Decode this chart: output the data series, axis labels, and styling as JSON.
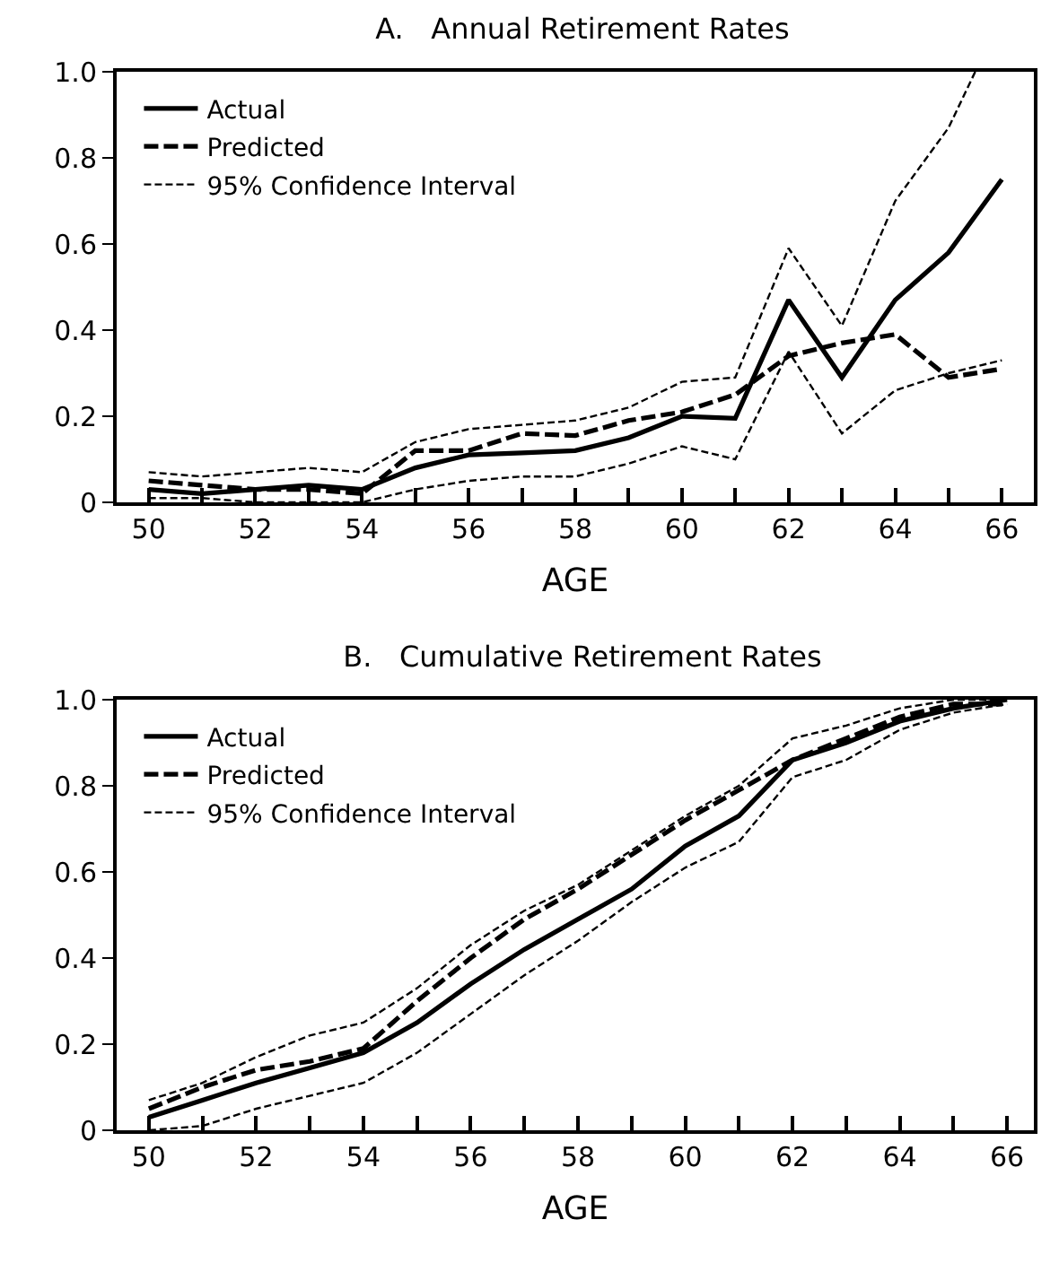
{
  "chart_data": [
    {
      "type": "line",
      "title": "A.   Annual Retirement Rates",
      "xlabel": "AGE",
      "x": [
        50,
        51,
        52,
        53,
        54,
        55,
        56,
        57,
        58,
        59,
        60,
        61,
        62,
        63,
        64,
        65,
        66
      ],
      "series": [
        {
          "name": "Actual",
          "color": "#000000",
          "line_style": "solid",
          "values": [
            0.03,
            0.02,
            0.03,
            0.04,
            0.03,
            0.08,
            0.11,
            0.115,
            0.12,
            0.15,
            0.2,
            0.195,
            0.47,
            0.29,
            0.47,
            0.58,
            0.75
          ]
        },
        {
          "name": "Predicted",
          "color": "#000000",
          "line_style": "dashed",
          "values": [
            0.05,
            0.04,
            0.03,
            0.03,
            0.02,
            0.12,
            0.12,
            0.16,
            0.155,
            0.19,
            0.21,
            0.25,
            0.34,
            0.37,
            0.39,
            0.29,
            0.31
          ]
        },
        {
          "name": "95% Confidence Interval",
          "color": "#000000",
          "line_style": "dashed",
          "x": [
            50,
            51,
            52,
            53,
            54,
            55,
            56,
            57,
            58,
            59,
            60,
            61,
            62,
            63,
            64,
            65,
            65.5
          ],
          "values": [
            0.07,
            0.06,
            0.07,
            0.08,
            0.07,
            0.14,
            0.17,
            0.18,
            0.19,
            0.22,
            0.28,
            0.29,
            0.59,
            0.41,
            0.7,
            0.87,
            1.0
          ]
        },
        {
          "color": "#000000",
          "line_style": "dashed",
          "values": [
            0.01,
            0.01,
            0.0,
            0.0,
            0.0,
            0.03,
            0.05,
            0.06,
            0.06,
            0.09,
            0.13,
            0.1,
            0.35,
            0.16,
            0.26,
            0.3,
            0.33
          ]
        }
      ],
      "xlim": [
        49.4,
        66.6
      ],
      "xticks": [
        50,
        {
          "value": 51,
          "label": null
        },
        52,
        {
          "value": 53,
          "label": null
        },
        54,
        {
          "value": 55,
          "label": null
        },
        56,
        {
          "value": 57,
          "label": null
        },
        58,
        {
          "value": 59,
          "label": null
        },
        60,
        {
          "value": 61,
          "label": null
        },
        62,
        {
          "value": 63,
          "label": null
        },
        64,
        {
          "value": 65,
          "label": null
        },
        66
      ],
      "ylim": [
        0,
        1
      ],
      "yticks": [
        0,
        0.2,
        0.4,
        0.6,
        0.8,
        {
          "value": 1,
          "label": "1.0"
        }
      ],
      "grid": false,
      "legend": "top left",
      "marker": "none"
    },
    {
      "type": "line",
      "title": "B.   Cumulative Retirement Rates",
      "xlabel": "AGE",
      "x": [
        50,
        51,
        52,
        53,
        54,
        55,
        56,
        57,
        58,
        59,
        60,
        61,
        62,
        63,
        64,
        65,
        66
      ],
      "series": [
        {
          "name": "Actual",
          "color": "#000000",
          "line_style": "solid",
          "values": [
            0.03,
            0.07,
            0.11,
            0.145,
            0.18,
            0.25,
            0.34,
            0.42,
            0.49,
            0.56,
            0.66,
            0.73,
            0.86,
            0.9,
            0.95,
            0.98,
            1.0
          ]
        },
        {
          "name": "Predicted",
          "color": "#000000",
          "line_style": "dashed",
          "values": [
            0.05,
            0.1,
            0.14,
            0.16,
            0.19,
            0.3,
            0.4,
            0.49,
            0.56,
            0.64,
            0.72,
            0.79,
            0.86,
            0.91,
            0.96,
            0.99,
            0.99
          ]
        },
        {
          "name": "95% Confidence Interval",
          "color": "#000000",
          "line_style": "dashed",
          "values": [
            0.07,
            0.11,
            0.17,
            0.22,
            0.25,
            0.33,
            0.43,
            0.51,
            0.57,
            0.65,
            0.73,
            0.8,
            0.91,
            0.94,
            0.98,
            1.0,
            1.0
          ]
        },
        {
          "color": "#000000",
          "line_style": "dashed",
          "values": [
            0.0,
            0.01,
            0.05,
            0.08,
            0.11,
            0.18,
            0.27,
            0.36,
            0.44,
            0.53,
            0.61,
            0.67,
            0.82,
            0.86,
            0.93,
            0.97,
            0.99
          ]
        }
      ],
      "xlim": [
        49.4,
        66.5
      ],
      "xticks": [
        50,
        {
          "value": 51,
          "label": null
        },
        52,
        {
          "value": 53,
          "label": null
        },
        54,
        {
          "value": 55,
          "label": null
        },
        56,
        {
          "value": 57,
          "label": null
        },
        58,
        {
          "value": 59,
          "label": null
        },
        60,
        {
          "value": 61,
          "label": null
        },
        62,
        {
          "value": 63,
          "label": null
        },
        64,
        {
          "value": 65,
          "label": null
        },
        66
      ],
      "ylim": [
        0,
        1
      ],
      "yticks": [
        0,
        0.2,
        0.4,
        0.6,
        0.8,
        {
          "value": 1,
          "label": "1.0"
        }
      ],
      "grid": false,
      "legend": "top left",
      "marker": "none"
    }
  ]
}
